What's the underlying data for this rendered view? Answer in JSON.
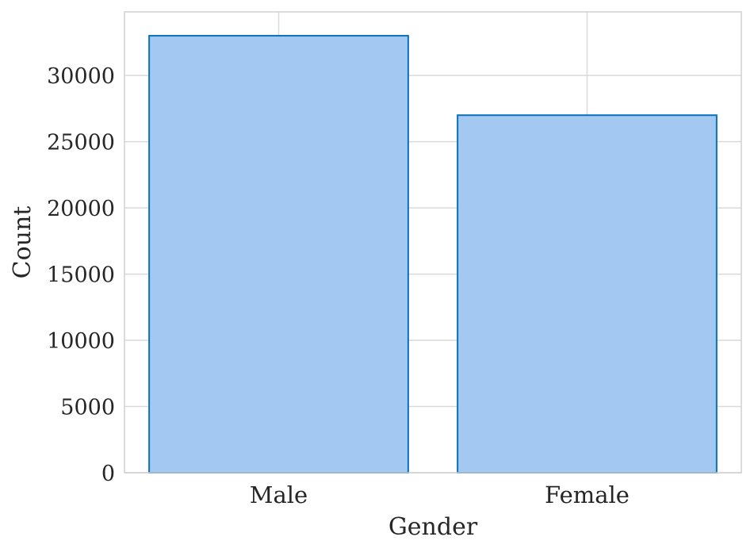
{
  "chart_data": {
    "type": "bar",
    "title": "",
    "xlabel": "Gender",
    "ylabel": "Count",
    "categories": [
      "Male",
      "Female"
    ],
    "values": [
      33000,
      27000
    ],
    "ylim": [
      0,
      34800
    ],
    "yticks": [
      0,
      5000,
      10000,
      15000,
      20000,
      25000,
      30000
    ],
    "ytick_labels": [
      "0",
      "5000",
      "10000",
      "15000",
      "20000",
      "25000",
      "30000"
    ],
    "grid": true,
    "legend": "none",
    "colors": {
      "bar_fill": "#a3c8f2",
      "bar_edge": "#0a72ba",
      "grid": "#d9d9d9",
      "frame": "#d0d0d0",
      "text": "#262626"
    }
  }
}
